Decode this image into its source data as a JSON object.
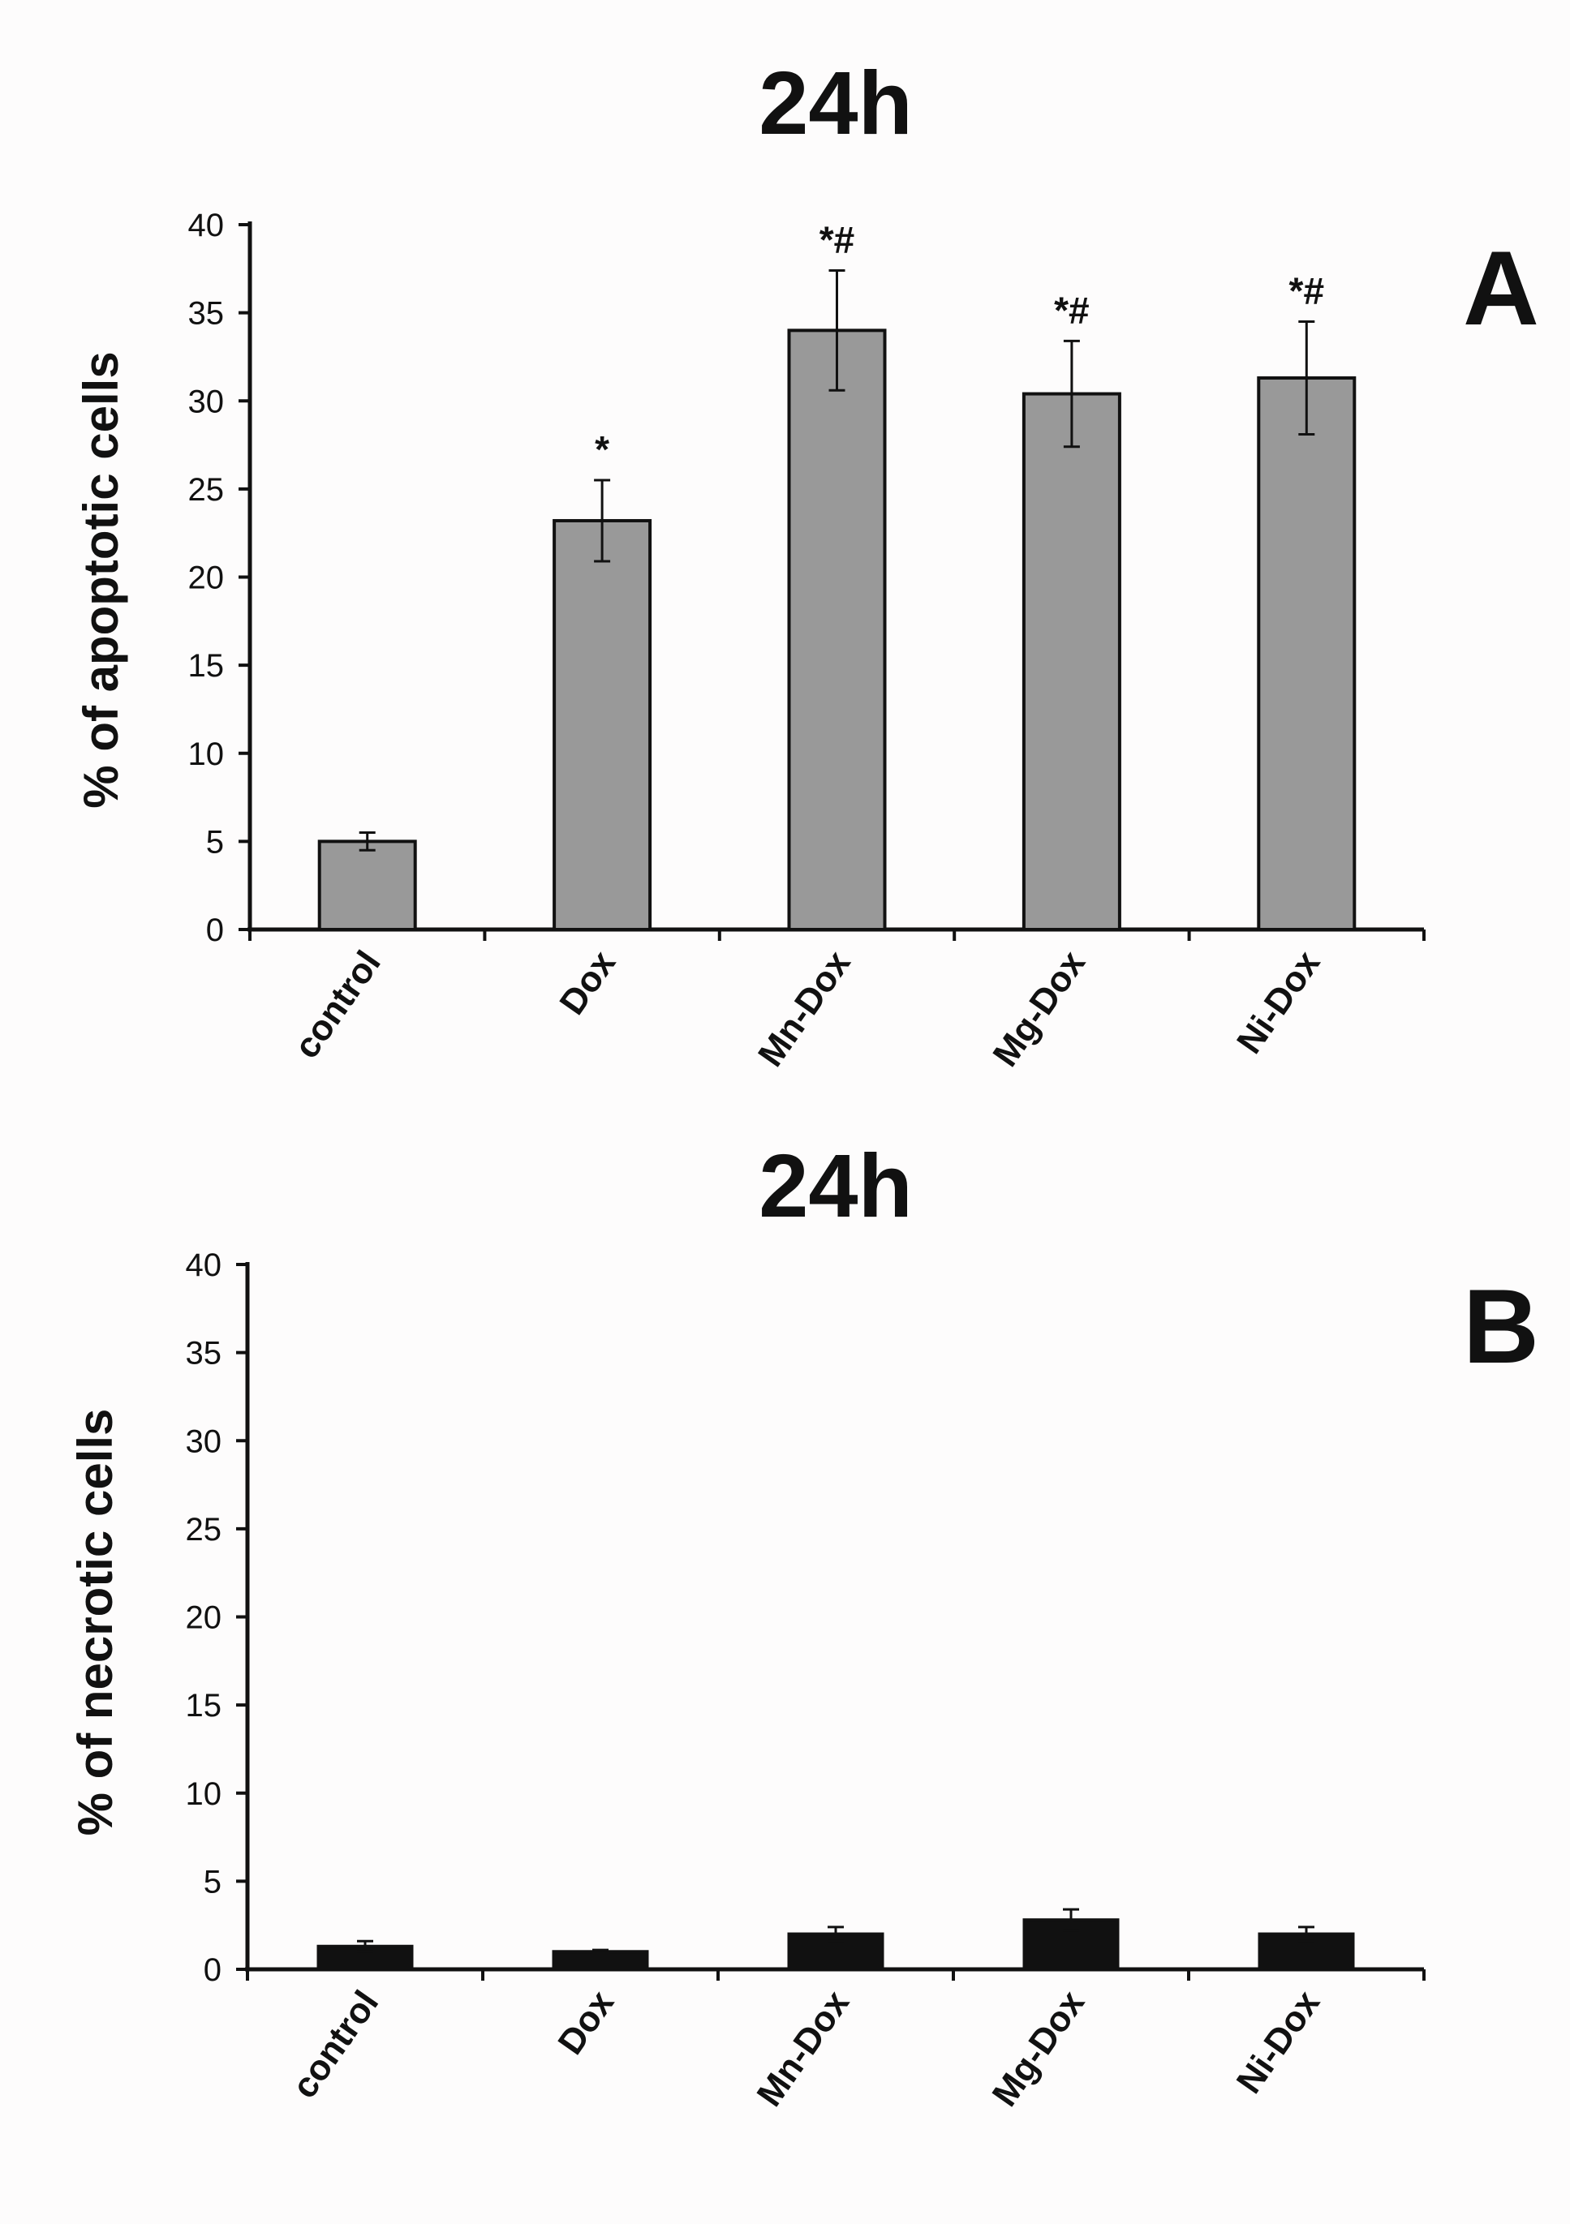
{
  "chart_data": [
    {
      "type": "bar",
      "panel": "A",
      "title": "24h",
      "xlabel": "",
      "ylabel": "% of apoptotic cells",
      "ylim": [
        0,
        40
      ],
      "yticks": [
        0,
        5,
        10,
        15,
        20,
        25,
        30,
        35,
        40
      ],
      "categories": [
        "control",
        "Dox",
        "Mn-Dox",
        "Mg-Dox",
        "Ni-Dox"
      ],
      "values": [
        5.0,
        23.2,
        34.0,
        30.4,
        31.3
      ],
      "errors": [
        0.5,
        2.3,
        3.4,
        3.0,
        3.2
      ],
      "annotations": [
        "",
        "*",
        "*#",
        "*#",
        "*#"
      ],
      "bar_color": "#999999",
      "grid": false
    },
    {
      "type": "bar",
      "panel": "B",
      "title": "24h",
      "xlabel": "",
      "ylabel": "% of necrotic cells",
      "ylim": [
        0,
        40
      ],
      "yticks": [
        0,
        5,
        10,
        15,
        20,
        25,
        30,
        35,
        40
      ],
      "categories": [
        "control",
        "Dox",
        "Mn-Dox",
        "Mg-Dox",
        "Ni-Dox"
      ],
      "values": [
        1.3,
        1.0,
        2.0,
        2.8,
        2.0
      ],
      "errors": [
        0.3,
        0.1,
        0.4,
        0.6,
        0.4
      ],
      "annotations": [
        "",
        "",
        "",
        "",
        ""
      ],
      "bar_color": "#111111",
      "grid": false
    }
  ]
}
